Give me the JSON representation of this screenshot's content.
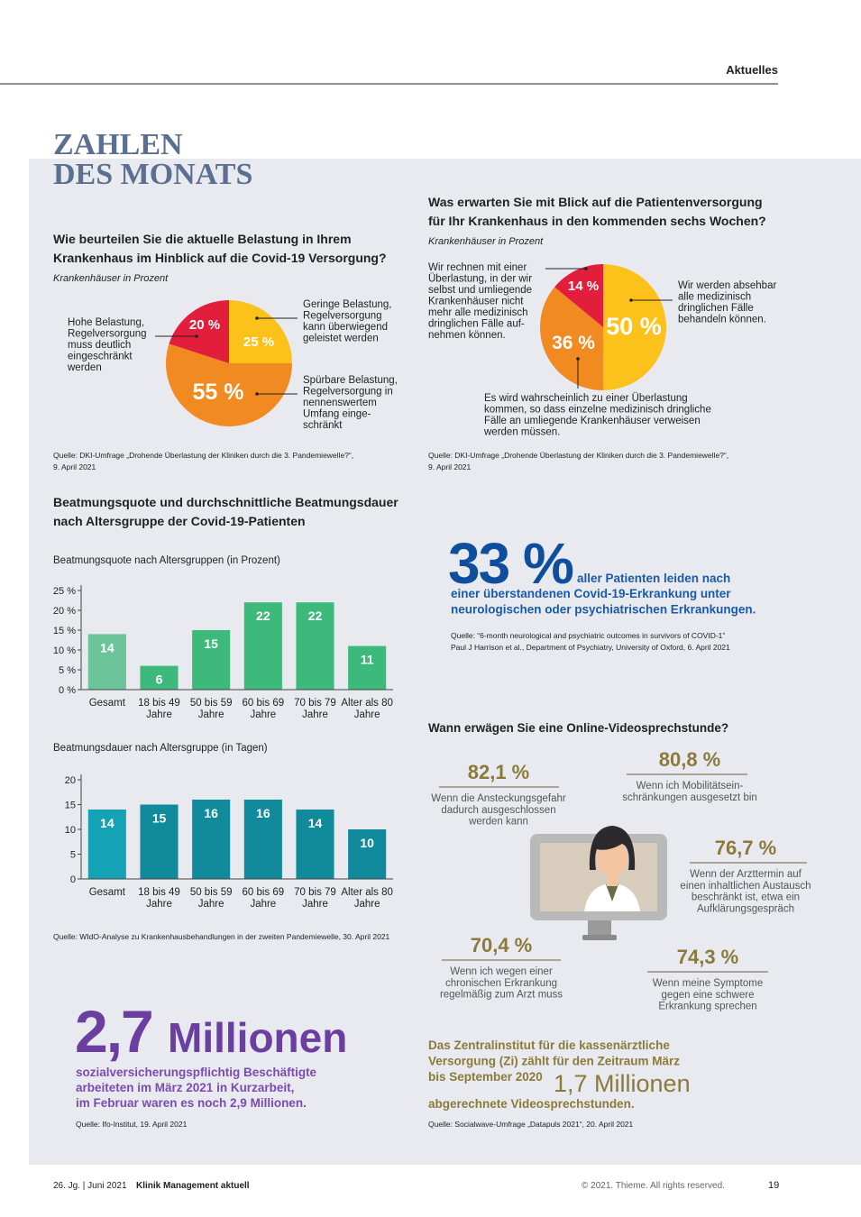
{
  "header": {
    "section": "Aktuelles"
  },
  "title": [
    "ZAHLEN",
    "DES MONATS"
  ],
  "chart_data": [
    {
      "type": "pie",
      "title": [
        "Wie beurteilen Sie die aktuelle Belastung in Ihrem",
        "Krankenhaus im Hinblick auf die Covid-19 Versorgung?"
      ],
      "subtitle": "Krankenhäuser in Prozent",
      "categories": [
        [
          "Geringe Belastung,",
          "Regelversorgung",
          "kann überwiegend",
          "geleistet werden"
        ],
        [
          "Spürbare Belastung,",
          "Regelversorgung in",
          "nennenswertem",
          "Umfang einge-",
          "schränkt"
        ],
        [
          "Hohe Belastung,",
          "Regelversorgung",
          "muss deutlich",
          "eingeschränkt",
          "werden"
        ]
      ],
      "values": [
        25,
        55,
        20
      ],
      "value_labels": [
        "25 %",
        "55 %",
        "20 %"
      ],
      "colors": [
        "#fcc21b",
        "#f28a22",
        "#e31e3c"
      ],
      "source": [
        "Quelle: DKI-Umfrage „Drohende Überlastung der Kliniken durch die 3. Pandemiewelle?“,",
        "9. April 2021"
      ]
    },
    {
      "type": "pie",
      "title": [
        "Was erwarten Sie mit Blick auf die Patientenversorgung",
        "für Ihr Krankenhaus in den kommenden sechs Wochen?"
      ],
      "subtitle": "Krankenhäuser in Prozent",
      "categories": [
        [
          "Wir werden absehbar",
          "alle medizinisch",
          "dringlichen Fälle",
          "behandeln können."
        ],
        [
          "Es wird wahrscheinlich zu einer Überlastung",
          "kommen, so dass einzelne medizinisch dringliche",
          "Fälle an umliegende Krankenhäuser verweisen",
          "werden müssen."
        ],
        [
          "Wir rechnen mit einer",
          "Überlastung, in der wir",
          "selbst und umliegende",
          "Krankenhäuser nicht",
          "mehr alle medizinisch",
          "dringlichen Fälle auf-",
          "nehmen können."
        ]
      ],
      "values": [
        50,
        36,
        14
      ],
      "value_labels": [
        "50 %",
        "36 %",
        "14 %"
      ],
      "colors": [
        "#fcc21b",
        "#f28a22",
        "#e31e3c"
      ],
      "source": [
        "Quelle: DKI-Umfrage „Drohende Überlastung der Kliniken durch die 3. Pandemiewelle?“,",
        "9. April 2021"
      ]
    },
    {
      "type": "bar",
      "subtitle": "Beatmungsquote nach Altersgruppen (in Prozent)",
      "categories": [
        "Gesamt",
        "18 bis 49 Jahre",
        "50 bis 59 Jahre",
        "60 bis 69 Jahre",
        "70 bis 79 Jahre",
        "Älter als 80 Jahre"
      ],
      "values": [
        14,
        6,
        15,
        22,
        22,
        11
      ],
      "colors": [
        "#6cc49a",
        "#3dba7b",
        "#3dba7b",
        "#3dba7b",
        "#3dba7b",
        "#3dba7b"
      ],
      "ylim": [
        0,
        25
      ],
      "yticks": [
        {
          "value": 0,
          "label": "0 %"
        },
        {
          "value": 5,
          "label": "5 %"
        },
        {
          "value": 10,
          "label": "10 %"
        },
        {
          "value": 15,
          "label": "15 %"
        },
        {
          "value": 20,
          "label": "20 %"
        },
        {
          "value": 25,
          "label": "25 %"
        }
      ]
    },
    {
      "type": "bar",
      "subtitle": "Beatmungsdauer nach Altersgruppe (in Tagen)",
      "categories": [
        "Gesamt",
        "18 bis 49 Jahre",
        "50 bis 59 Jahre",
        "60 bis 69 Jahre",
        "70 bis 79 Jahre",
        "Älter als 80 Jahre"
      ],
      "values": [
        14,
        15,
        16,
        16,
        14,
        10
      ],
      "colors": [
        "#14a3b5",
        "#118a9c",
        "#118a9c",
        "#118a9c",
        "#118a9c",
        "#118a9c"
      ],
      "ylim": [
        0,
        20
      ],
      "yticks": [
        0,
        5,
        10,
        15,
        20
      ]
    }
  ],
  "ventilation": {
    "title": [
      "Beatmungsquote und durchschnittliche Beatmungsdauer",
      "nach Altersgruppe der Covid-19-Patienten"
    ],
    "source": "Quelle: WIdO-Analyse zu Krankenhausbehandlungen in der zweiten Pandemiewelle, 30. April 2021"
  },
  "patients": {
    "value": "33 %",
    "lead": "aller Patienten leiden nach",
    "text": [
      "einer überstandenen Covid-19-Erkrankung unter",
      "neurologischen oder psychiatrischen Erkrankungen."
    ],
    "source": [
      "Quelle: “6-month neurological and psychiatric outcomes in survivors of COVID-1”",
      "Paul J Harrison et al., Department of Psychiatry, University of Oxford, 6. April 2021"
    ]
  },
  "survey": {
    "title": "Wann erwägen Sie eine Online-Videosprechstunde?",
    "items": [
      {
        "value": "82,1 %",
        "text": [
          "Wenn die Ansteckungsgefahr",
          "dadurch ausgeschlossen",
          "werden kann"
        ]
      },
      {
        "value": "80,8 %",
        "text": [
          "Wenn ich Mobilitätsein-",
          "schränkungen ausgesetzt bin"
        ]
      },
      {
        "value": "76,7 %",
        "text": [
          "Wenn der Arzttermin auf",
          "einen inhaltlichen Austausch",
          "beschränkt ist, etwa ein",
          "Aufklärungsgespräch"
        ]
      },
      {
        "value": "70,4 %",
        "text": [
          "Wenn ich wegen einer",
          "chronischen Erkrankung",
          "regelmäßig zum Arzt muss"
        ]
      },
      {
        "value": "74,3 %",
        "text": [
          "Wenn meine Symptome",
          "gegen eine schwere",
          "Erkrankung sprechen"
        ]
      }
    ]
  },
  "zi": {
    "text": [
      "Das Zentralinstitut für die kassenärztliche",
      "Versorgung (Zi) zählt für den Zeitraum März",
      "bis September 2020"
    ],
    "highlight": "1,7 Millionen",
    "text_after": "abgerechnete Videosprechstunden.",
    "source": "Quelle: Socialwave-Umfrage „Datapuls 2021“, 20. April 2021"
  },
  "kurzarbeit": {
    "number": "2,7",
    "unit": "Millionen",
    "text": [
      "sozialversicherungspflichtig Beschäftigte",
      "arbeiteten im März 2021 in Kurzarbeit,",
      "im Februar waren es noch 2,9 Millionen."
    ],
    "source": "Quelle: Ifo-Institut, 19. April 2021"
  },
  "footer": {
    "issue": "26. Jg.  |  Juni 2021",
    "journal": "Klinik Management aktuell",
    "copyright": "© 2021. Thieme. All rights reserved.",
    "page": "19"
  }
}
